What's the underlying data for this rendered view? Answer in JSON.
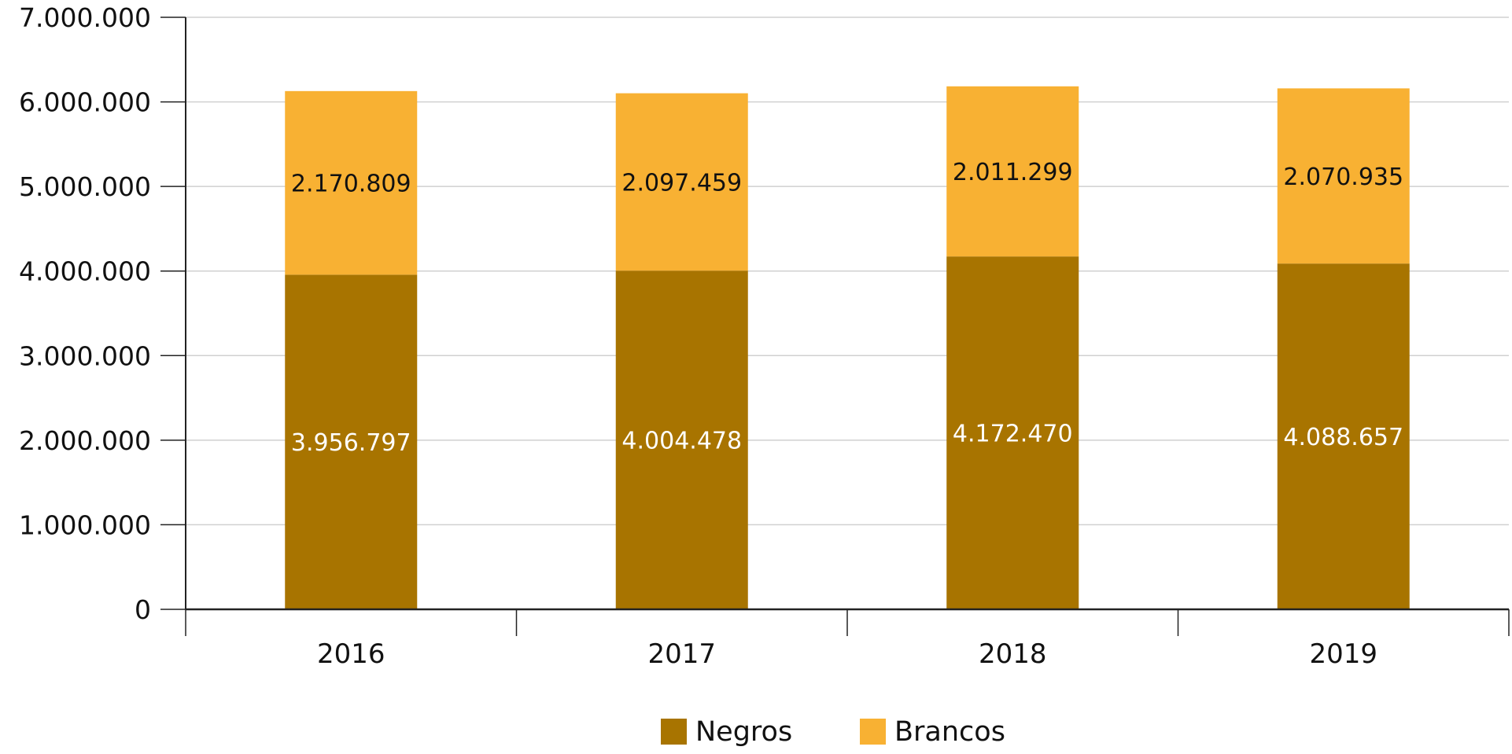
{
  "chart_data": {
    "type": "bar",
    "stacked": true,
    "title": "",
    "xlabel": "",
    "ylabel": "",
    "categories": [
      "2016",
      "2017",
      "2018",
      "2019"
    ],
    "series": [
      {
        "name": "Negros",
        "values": [
          3956797,
          4004478,
          4172470,
          4088657
        ],
        "labels": [
          "3.956.797",
          "4.004.478",
          "4.172.470",
          "4.088.657"
        ],
        "color": "#A87400",
        "label_color": "#FFFFFF"
      },
      {
        "name": "Brancos",
        "values": [
          2170809,
          2097459,
          2011299,
          2070935
        ],
        "labels": [
          "2.170.809",
          "2.097.459",
          "2.011.299",
          "2.070.935"
        ],
        "color": "#F8B133",
        "label_color": "#111111"
      }
    ],
    "ylim": [
      0,
      7000000
    ],
    "yticks": [
      0,
      1000000,
      2000000,
      3000000,
      4000000,
      5000000,
      6000000,
      7000000
    ],
    "ytick_labels": [
      "0",
      "1.000.000",
      "2.000.000",
      "3.000.000",
      "4.000.000",
      "5.000.000",
      "6.000.000",
      "7.000.000"
    ],
    "grid": true,
    "grid_color": "#D0D0D0",
    "legend_position": "bottom-center"
  }
}
